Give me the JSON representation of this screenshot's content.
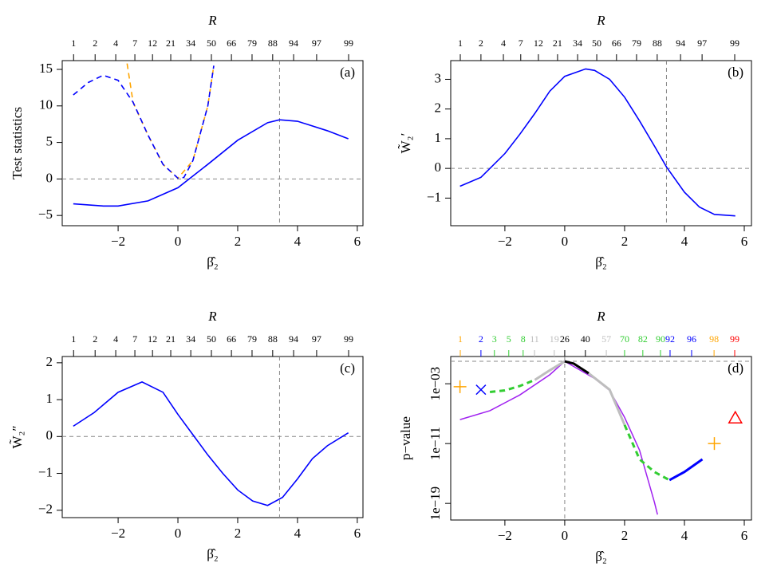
{
  "chart_data": [
    {
      "type": "line",
      "x2_label": "R",
      "xlabel": "β̂₂",
      "ylabel": "Test statistics",
      "tag": "(a)",
      "xlim": [
        -3.87,
        6.19
      ],
      "ylim": [
        -6.4,
        16.2
      ],
      "xticks": [
        {
          "value": -2,
          "label": "−2"
        },
        0,
        2,
        4,
        6
      ],
      "yticks": [
        {
          "value": -5,
          "label": "−5"
        },
        0,
        5,
        10,
        15
      ],
      "x2ticks": [
        {
          "value": -3.49,
          "label": "1"
        },
        {
          "value": -2.77,
          "label": "2"
        },
        {
          "value": -2.08,
          "label": "4"
        },
        {
          "value": -1.44,
          "label": "7"
        },
        {
          "value": -0.85,
          "label": "12"
        },
        {
          "value": -0.24,
          "label": "21"
        },
        {
          "value": 0.43,
          "label": "34"
        },
        {
          "value": 1.12,
          "label": "50"
        },
        {
          "value": 1.79,
          "label": "66"
        },
        {
          "value": 2.48,
          "label": "79"
        },
        {
          "value": 3.17,
          "label": "88"
        },
        {
          "value": 3.87,
          "label": "94"
        },
        {
          "value": 4.64,
          "label": "97"
        },
        {
          "value": 5.71,
          "label": "99"
        }
      ],
      "hline": 0,
      "vline": 3.4,
      "series": [
        {
          "color": "#ffa500",
          "style": "dashed",
          "x": [
            -1.7,
            -1.5,
            -1,
            -0.5,
            0,
            0.5,
            1,
            1.2
          ],
          "values": [
            15.8,
            10.5,
            6,
            2,
            0.1,
            2.5,
            10,
            15.5
          ]
        },
        {
          "color": "#0000ff",
          "style": "dashed",
          "x": [
            -3.5,
            -3,
            -2.5,
            -2,
            -1.5,
            -1,
            -0.5,
            0,
            0.2,
            0.5,
            1,
            1.2
          ],
          "values": [
            11.5,
            13.2,
            14.2,
            13.5,
            10.5,
            6,
            2,
            0.1,
            0.2,
            2.5,
            10,
            15.5
          ]
        },
        {
          "color": "#0000ff",
          "style": "solid",
          "x": [
            -3.5,
            -2.5,
            -2,
            -1,
            0,
            1,
            2,
            3,
            3.4,
            4,
            5,
            5.7
          ],
          "values": [
            -3.4,
            -3.7,
            -3.7,
            -3.0,
            -1.2,
            2.0,
            5.3,
            7.7,
            8.1,
            7.9,
            6.6,
            5.5
          ]
        }
      ]
    },
    {
      "type": "line",
      "x2_label": "R",
      "xlabel": "β̂₂",
      "ylabel": "W̃₂′",
      "tag": "(b)",
      "xlim": [
        -3.81,
        6.24
      ],
      "ylim": [
        -1.93,
        3.63
      ],
      "xticks": [
        {
          "value": -2,
          "label": "−2"
        },
        0,
        2,
        4,
        6
      ],
      "yticks": [
        {
          "value": -1,
          "label": "−1"
        },
        0,
        1,
        2,
        3
      ],
      "x2ticks": [
        {
          "value": -3.49,
          "label": "1"
        },
        {
          "value": -2.8,
          "label": "2"
        },
        {
          "value": -2.05,
          "label": "4"
        },
        {
          "value": -1.47,
          "label": "7"
        },
        {
          "value": -0.88,
          "label": "12"
        },
        {
          "value": -0.24,
          "label": "21"
        },
        {
          "value": 0.43,
          "label": "34"
        },
        {
          "value": 1.07,
          "label": "50"
        },
        {
          "value": 1.73,
          "label": "66"
        },
        {
          "value": 2.4,
          "label": "79"
        },
        {
          "value": 3.09,
          "label": "88"
        },
        {
          "value": 3.87,
          "label": "94"
        },
        {
          "value": 4.59,
          "label": "97"
        },
        {
          "value": 5.68,
          "label": "99"
        }
      ],
      "hline": 0,
      "vline": 3.4,
      "series": [
        {
          "color": "#0000ff",
          "style": "solid",
          "x": [
            -3.5,
            -2.8,
            -2.5,
            -2,
            -1.5,
            -1,
            -0.5,
            0,
            0.7,
            1,
            1.5,
            2,
            2.5,
            3,
            3.4,
            4,
            4.5,
            5,
            5.7
          ],
          "values": [
            -0.6,
            -0.3,
            0,
            0.5,
            1.15,
            1.85,
            2.6,
            3.1,
            3.35,
            3.3,
            3.0,
            2.4,
            1.6,
            0.75,
            0.05,
            -0.8,
            -1.3,
            -1.55,
            -1.6
          ]
        }
      ]
    },
    {
      "type": "line",
      "x2_label": "R",
      "xlabel": "β̂₂",
      "ylabel": "W̃₂″",
      "tag": "(c)",
      "xlim": [
        -3.87,
        6.19
      ],
      "ylim": [
        -2.2,
        2.17
      ],
      "xticks": [
        {
          "value": -2,
          "label": "−2"
        },
        0,
        2,
        4,
        6
      ],
      "yticks": [
        {
          "value": -2,
          "label": "−2"
        },
        {
          "value": -1,
          "label": "−1"
        },
        0,
        1,
        2
      ],
      "x2ticks": [
        {
          "value": -3.49,
          "label": "1"
        },
        {
          "value": -2.77,
          "label": "2"
        },
        {
          "value": -2.08,
          "label": "4"
        },
        {
          "value": -1.44,
          "label": "7"
        },
        {
          "value": -0.85,
          "label": "12"
        },
        {
          "value": -0.24,
          "label": "21"
        },
        {
          "value": 0.43,
          "label": "34"
        },
        {
          "value": 1.12,
          "label": "50"
        },
        {
          "value": 1.79,
          "label": "66"
        },
        {
          "value": 2.48,
          "label": "79"
        },
        {
          "value": 3.17,
          "label": "88"
        },
        {
          "value": 3.87,
          "label": "94"
        },
        {
          "value": 4.64,
          "label": "97"
        },
        {
          "value": 5.71,
          "label": "99"
        }
      ],
      "hline": 0,
      "vline": 3.4,
      "series": [
        {
          "color": "#0000ff",
          "style": "solid",
          "x": [
            -3.5,
            -2.8,
            -2,
            -1.2,
            -0.5,
            0,
            0.5,
            1,
            1.5,
            2,
            2.5,
            3,
            3.5,
            4,
            4.5,
            5,
            5.7
          ],
          "values": [
            0.28,
            0.65,
            1.2,
            1.48,
            1.2,
            0.6,
            0.05,
            -0.5,
            -1.0,
            -1.45,
            -1.75,
            -1.87,
            -1.65,
            -1.15,
            -0.6,
            -0.25,
            0.1
          ]
        }
      ]
    },
    {
      "type": "line",
      "x2_label": "R",
      "xlabel": "β̂₂",
      "ylabel": "p−value",
      "tag": "(d)",
      "log_y": true,
      "xlim": [
        -3.81,
        6.24
      ],
      "ylim": [
        6e-22,
        4.4
      ],
      "xticks": [
        {
          "value": -2,
          "label": "−2"
        },
        0,
        2,
        4,
        6
      ],
      "yticks": [
        {
          "value": 1e-19,
          "label": "1e−19"
        },
        {
          "value": 1e-11,
          "label": "1e−11"
        },
        {
          "value": 0.001,
          "label": "1e−03"
        }
      ],
      "x2ticks": [
        {
          "value": -3.49,
          "label": "1"
        },
        {
          "value": -2.8,
          "label": "2"
        },
        {
          "value": -2.35,
          "label": "3"
        },
        {
          "value": -1.87,
          "label": "5"
        },
        {
          "value": -1.39,
          "label": "8"
        },
        {
          "value": -1.01,
          "label": "11"
        },
        {
          "value": -0.35,
          "label": "19"
        },
        {
          "value": 0,
          "label": "26"
        },
        {
          "value": 0.69,
          "label": "40"
        },
        {
          "value": 1.39,
          "label": "57"
        },
        {
          "value": 2.0,
          "label": "70"
        },
        {
          "value": 2.61,
          "label": "82"
        },
        {
          "value": 3.2,
          "label": "90"
        },
        {
          "value": 3.52,
          "label": "92"
        },
        {
          "value": 4.24,
          "label": "96"
        },
        {
          "value": 4.99,
          "label": "98"
        },
        {
          "value": 5.68,
          "label": "99"
        }
      ],
      "x2tick_colors": [
        "#ffa500",
        "#0000ff",
        "#32cd32",
        "#32cd32",
        "#32cd32",
        "#bebebe",
        "#bebebe",
        "#000000",
        "#000000",
        "#bebebe",
        "#32cd32",
        "#32cd32",
        "#32cd32",
        "#0000ff",
        "#0000ff",
        "#ffa500",
        "#ff0000"
      ],
      "hline": 1,
      "vline": 0,
      "series": [
        {
          "color": "#a020f0",
          "style": "solid",
          "width": 1.5,
          "x": [
            -3.5,
            -2.5,
            -1.5,
            -0.5,
            0,
            1,
            1.5,
            2,
            2.5,
            3,
            3.1
          ],
          "values": [
            1.6e-08,
            2.5e-07,
            3.2e-05,
            0.016,
            1,
            0.005,
            0.00013,
            3.2e-08,
            1.3e-12,
            1.3e-19,
            3.2e-21
          ]
        },
        {
          "color": "#32cd32",
          "style": "dashed",
          "width": 3,
          "x": [
            -2.5,
            -2,
            -1.5,
            -1
          ],
          "values": [
            7.9e-05,
            0.00013,
            0.0005,
            0.0032
          ]
        },
        {
          "color": "#32cd32",
          "style": "dashed",
          "width": 3,
          "x": [
            2,
            2.5,
            3,
            3.5
          ],
          "values": [
            3.2e-09,
            7.9e-14,
            1.6e-15,
            1.3e-16
          ]
        },
        {
          "color": "#bebebe",
          "style": "solid",
          "width": 3,
          "x": [
            -1,
            -0.5,
            0
          ],
          "values": [
            0.0032,
            0.063,
            1
          ]
        },
        {
          "color": "#bebebe",
          "style": "solid",
          "width": 3,
          "x": [
            0.8,
            1.5,
            2
          ],
          "values": [
            0.025,
            0.00016,
            3.2e-09
          ]
        },
        {
          "color": "#000000",
          "style": "solid",
          "width": 3,
          "x": [
            0,
            0.3,
            0.8
          ],
          "values": [
            1,
            0.5,
            0.025
          ]
        },
        {
          "color": "#0000ff",
          "style": "solid",
          "width": 3,
          "x": [
            3.5,
            4,
            4.6
          ],
          "values": [
            1.3e-16,
            1.6e-15,
            7.9e-14
          ]
        },
        {
          "color": "#ffa500",
          "marker": "plus",
          "x": [
            -3.5,
            5
          ],
          "values": [
            0.0004,
            1e-11
          ]
        },
        {
          "color": "#0000ff",
          "marker": "cross",
          "x": [
            -2.8
          ],
          "values": [
            0.00016
          ]
        },
        {
          "color": "#ff0000",
          "marker": "triangle",
          "x": [
            5.7
          ],
          "values": [
            2.5e-08
          ]
        }
      ]
    }
  ]
}
